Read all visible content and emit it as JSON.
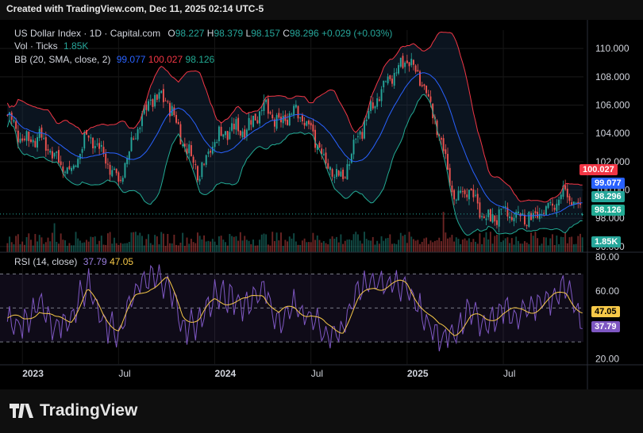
{
  "header_text": "Created with TradingView.com, Dec 11, 2025 02:14 UTC-5",
  "brand": "TradingView",
  "legend": {
    "symbol": "US Dollar Index · 1D · Capital.com",
    "o_label": "O",
    "o": "98.227",
    "h_label": "H",
    "h": "98.379",
    "l_label": "L",
    "l": "98.157",
    "c_label": "C",
    "c": "98.296",
    "change": "+0.029 (+0.03%)",
    "vol_label": "Vol · Ticks",
    "vol": "1.85K",
    "bb_label": "BB (20, SMA, close, 2)",
    "bb_basis": "99.077",
    "bb_upper": "100.027",
    "bb_lower": "98.126",
    "rsi_label": "RSI (14, close)",
    "rsi": "37.79",
    "rsi_ma": "47.05"
  },
  "price_tags": {
    "upper": "100.027",
    "basis": "99.077",
    "close": "98.296",
    "lower": "98.126",
    "volume": "1.85K",
    "rsi_ma": "47.05",
    "rsi": "37.79"
  },
  "colors": {
    "up": "#26a69a",
    "down": "#ef5350",
    "upper": "#f23645",
    "basis": "#2962ff",
    "lower": "#22ab94",
    "rsi": "#7e57c2",
    "rsi_ma": "#f7c948"
  },
  "chart_data": [
    {
      "type": "line",
      "subtype": "candlestick with Bollinger Bands and volume",
      "title": "US Dollar Index · 1D · Capital.com",
      "y_ticks": [
        "96.000",
        "98.000",
        "100.000",
        "102.000",
        "104.000",
        "106.000",
        "108.000",
        "110.000"
      ],
      "ylim": [
        95.6,
        111.3
      ],
      "x_ticks": [
        "2023",
        "Jul",
        "2024",
        "Jul",
        "2025",
        "Jul"
      ],
      "x": [
        "2022-12",
        "2023-01",
        "2023-02",
        "2023-03",
        "2023-04",
        "2023-05",
        "2023-06",
        "2023-07",
        "2023-08",
        "2023-09",
        "2023-10",
        "2023-11",
        "2023-12",
        "2024-01",
        "2024-02",
        "2024-03",
        "2024-04",
        "2024-05",
        "2024-06",
        "2024-07",
        "2024-08",
        "2024-09",
        "2024-10",
        "2024-11",
        "2024-12",
        "2025-01",
        "2025-02",
        "2025-03",
        "2025-04",
        "2025-05",
        "2025-06",
        "2025-07",
        "2025-08",
        "2025-09",
        "2025-10",
        "2025-11",
        "2025-12"
      ],
      "series": [
        {
          "values": [
            105.3,
            103.5,
            103.8,
            102.3,
            101.2,
            104.0,
            102.5,
            100.5,
            104.0,
            106.5,
            106.4,
            103.4,
            101.2,
            103.6,
            104.3,
            104.3,
            106.0,
            104.6,
            105.8,
            104.2,
            101.7,
            100.8,
            104.0,
            106.1,
            108.0,
            109.3,
            107.6,
            104.0,
            99.5,
            99.9,
            97.8,
            98.4,
            98.1,
            98.1,
            98.8,
            99.8,
            98.3
          ]
        }
      ],
      "last": {
        "open": 98.227,
        "high": 98.379,
        "low": 98.157,
        "close": 98.296
      }
    },
    {
      "type": "line",
      "title": "RSI (14, close)",
      "y_ticks": [
        "20.00",
        "60.00",
        "80.00"
      ],
      "ylim": [
        17,
        81
      ],
      "bands": [
        30,
        70
      ],
      "x": [
        "2022-12",
        "2023-01",
        "2023-02",
        "2023-03",
        "2023-04",
        "2023-05",
        "2023-06",
        "2023-07",
        "2023-08",
        "2023-09",
        "2023-10",
        "2023-11",
        "2023-12",
        "2024-01",
        "2024-02",
        "2024-03",
        "2024-04",
        "2024-05",
        "2024-06",
        "2024-07",
        "2024-08",
        "2024-09",
        "2024-10",
        "2024-11",
        "2024-12",
        "2025-01",
        "2025-02",
        "2025-03",
        "2025-04",
        "2025-05",
        "2025-06",
        "2025-07",
        "2025-08",
        "2025-09",
        "2025-10",
        "2025-11",
        "2025-12"
      ],
      "series": [
        {
          "values": [
            42,
            40,
            55,
            38,
            45,
            65,
            40,
            35,
            60,
            68,
            66,
            38,
            42,
            58,
            55,
            52,
            63,
            40,
            52,
            45,
            33,
            38,
            60,
            66,
            62,
            65,
            45,
            30,
            36,
            48,
            40,
            50,
            45,
            52,
            55,
            62,
            37.79
          ]
        },
        {
          "values": [
            44,
            42,
            50,
            42,
            44,
            60,
            46,
            38,
            55,
            64,
            66,
            46,
            43,
            54,
            55,
            53,
            60,
            46,
            50,
            47,
            38,
            38,
            54,
            63,
            64,
            63,
            52,
            38,
            36,
            44,
            43,
            48,
            47,
            50,
            54,
            60,
            47.05
          ]
        }
      ]
    }
  ]
}
